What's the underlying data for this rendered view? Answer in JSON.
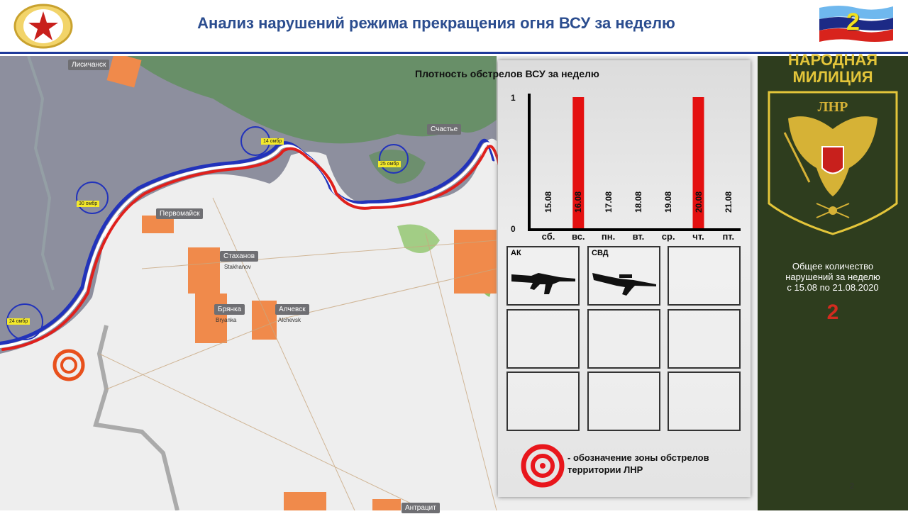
{
  "header": {
    "title": "Анализ нарушений режима прекращения огня ВСУ за неделю",
    "flag_number": "2"
  },
  "map": {
    "cities": [
      {
        "ru": "Лисичанск",
        "en": ""
      },
      {
        "ru": "Первомайск",
        "en": ""
      },
      {
        "ru": "Стаханов",
        "en": "Stakhanov"
      },
      {
        "ru": "Брянка",
        "en": "Bryanka"
      },
      {
        "ru": "Алчевск",
        "en": "Alchevsk"
      },
      {
        "ru": "Счастье",
        "en": ""
      },
      {
        "ru": "Антрацит",
        "en": ""
      }
    ],
    "brigades": [
      "14 омбр",
      "30 омбр",
      "25 омбр",
      "24 омбр"
    ],
    "colors": {
      "ukraine_area": "#8d8f9e",
      "lnr_area": "#f2f2f2",
      "forest": "#5f8f5a",
      "cities": "#f08a4b",
      "front_blue": "#2233bb",
      "front_red": "#e0201c",
      "target": "#e8501c"
    }
  },
  "chart_data": {
    "type": "bar",
    "title": "Плотность обстрелов ВСУ за неделю",
    "categories": [
      "сб.",
      "вс.",
      "пн.",
      "вт.",
      "ср.",
      "чт.",
      "пт."
    ],
    "dates": [
      "15.08",
      "16.08",
      "17.08",
      "18.08",
      "19.08",
      "20.08",
      "21.08"
    ],
    "values": [
      0,
      1,
      0,
      0,
      0,
      1,
      0
    ],
    "yticks": [
      "0",
      "1"
    ],
    "ylim": [
      0,
      1
    ],
    "bar_color": "#e41010",
    "grid": false
  },
  "weapons": {
    "cells": [
      {
        "label": "АК",
        "icon": "rifle-ak-icon"
      },
      {
        "label": "СВД",
        "icon": "rifle-svd-icon"
      },
      {
        "label": ""
      },
      {
        "label": ""
      },
      {
        "label": ""
      },
      {
        "label": ""
      },
      {
        "label": ""
      },
      {
        "label": ""
      },
      {
        "label": ""
      }
    ]
  },
  "legend": {
    "text": "- обозначение зоны обстрелов территории ЛНР",
    "icon": "target-icon"
  },
  "side": {
    "heading_1": "НАРОДНАЯ",
    "heading_2": "МИЛИЦИЯ",
    "emblem_text": "ЛНР",
    "summary_1": "Общее количество",
    "summary_2": "нарушений за неделю",
    "summary_3": "с  15.08 по 21.08.2020",
    "total": "2"
  },
  "page_number": "2"
}
